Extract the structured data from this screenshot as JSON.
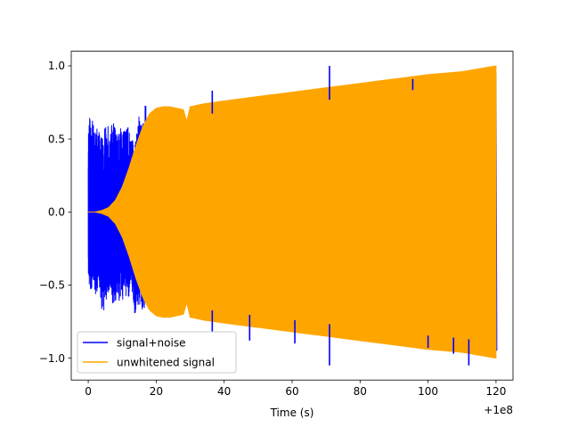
{
  "chart_data": {
    "type": "line",
    "title": "",
    "xlabel": "Time (s)",
    "ylabel": "",
    "x_offset_label": "+1e8",
    "xlim": [
      -5,
      125
    ],
    "ylim": [
      -1.15,
      1.1
    ],
    "xticks": [
      0,
      20,
      40,
      60,
      80,
      100,
      120
    ],
    "xtick_labels": [
      "0",
      "20",
      "40",
      "60",
      "80",
      "100",
      "120"
    ],
    "yticks": [
      -1.0,
      -0.5,
      0.0,
      0.5,
      1.0
    ],
    "ytick_labels": [
      "−1.0",
      "−0.5",
      "0.0",
      "0.5",
      "1.0"
    ],
    "grid": false,
    "legend_position": "lower-left",
    "series": [
      {
        "name": "signal+noise",
        "color": "#0000ff",
        "x_range": [
          0,
          120
        ],
        "max_values": [
          0.65,
          0.68,
          0.56,
          0.6,
          0.5,
          0.63,
          0.58,
          0.62,
          0.55,
          0.6,
          0.56,
          0.58,
          0.52,
          0.48,
          0.66,
          0.58,
          0.8
        ],
        "min_values": [
          -0.6,
          -0.55,
          -0.58,
          -0.5,
          -0.76,
          -0.6,
          -0.55,
          -0.7,
          -0.57,
          -0.65,
          -0.56,
          -0.6,
          -0.55,
          -0.72,
          -0.62,
          -0.74,
          -0.65
        ],
        "noise_x_range": [
          0,
          17
        ],
        "spikes": [
          {
            "x": 36.5,
            "y": 0.83
          },
          {
            "x": 36.5,
            "y": -0.82
          },
          {
            "x": 47.5,
            "y": -0.88
          },
          {
            "x": 60.8,
            "y": -0.9
          },
          {
            "x": 71,
            "y": 1.0
          },
          {
            "x": 71,
            "y": -1.05
          },
          {
            "x": 95.5,
            "y": 0.91
          },
          {
            "x": 100,
            "y": -0.93
          },
          {
            "x": 107.5,
            "y": -0.97
          },
          {
            "x": 112,
            "y": -1.05
          }
        ]
      },
      {
        "name": "unwhitened signal",
        "color": "#ffa500",
        "envelope_x": [
          0,
          2,
          4,
          6,
          8,
          10,
          12,
          14,
          16,
          18,
          20,
          22,
          24,
          26,
          28,
          29,
          30,
          32,
          34,
          40,
          50,
          60,
          70,
          80,
          90,
          100,
          110,
          115,
          120
        ],
        "envelope_y": [
          0.0,
          0.0,
          0.01,
          0.03,
          0.08,
          0.17,
          0.3,
          0.45,
          0.58,
          0.67,
          0.71,
          0.72,
          0.72,
          0.71,
          0.7,
          0.62,
          0.72,
          0.73,
          0.74,
          0.76,
          0.79,
          0.82,
          0.85,
          0.88,
          0.91,
          0.94,
          0.96,
          0.98,
          1.0
        ]
      }
    ]
  }
}
